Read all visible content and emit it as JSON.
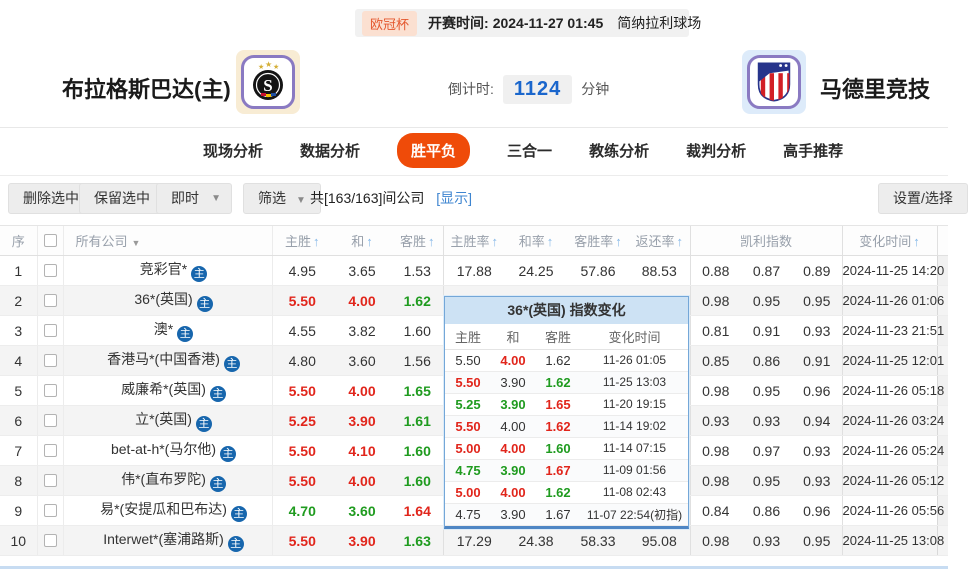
{
  "match_bar": {
    "league_badge": "欧冠杯",
    "kickoff_label": "开赛时间:",
    "kickoff_time": "2024-11-27 01:45",
    "venue": "简纳拉利球场"
  },
  "teams": {
    "home_name": "布拉格斯巴达(主)",
    "away_name": "马德里竞技",
    "home_logo": "sparta-prague-crest",
    "away_logo": "atletico-madrid-crest"
  },
  "countdown": {
    "label": "倒计时:",
    "value": "1124",
    "unit": "分钟"
  },
  "tabs": {
    "items": [
      {
        "label": "现场分析",
        "active": false
      },
      {
        "label": "数据分析",
        "active": false
      },
      {
        "label": "胜平负",
        "active": true
      },
      {
        "label": "三合一",
        "active": false
      },
      {
        "label": "教练分析",
        "active": false
      },
      {
        "label": "裁判分析",
        "active": false
      },
      {
        "label": "高手推荐",
        "active": false
      }
    ]
  },
  "toolbar": {
    "delete_selected": "删除选中",
    "keep_selected": "保留选中",
    "live_dropdown": "即时",
    "filter_dropdown": "筛选",
    "company_count": "共[163/163]间公司",
    "show_link": "[显示]",
    "settings_button": "设置/选择"
  },
  "odds_table": {
    "headers": {
      "seq": "序",
      "company": "所有公司",
      "home": "主胜",
      "draw": "和",
      "away": "客胜",
      "home_rate": "主胜率",
      "draw_rate": "和率",
      "away_rate": "客胜率",
      "return_rate": "返还率",
      "kelly": "凯利指数",
      "change_time": "变化时间"
    },
    "company_tag": "主",
    "rows": [
      {
        "no": "1",
        "company": "竞彩官*",
        "odds": [
          "4.95",
          "3.65",
          "1.53"
        ],
        "odds_colors": [
          "k",
          "k",
          "k"
        ],
        "rates": [
          "17.88",
          "24.25",
          "57.86",
          "88.53"
        ],
        "kelly": [
          "0.88",
          "0.87",
          "0.89"
        ],
        "time": "2024-11-25 14:20"
      },
      {
        "no": "2",
        "company": "36*(英国)",
        "odds": [
          "5.50",
          "4.00",
          "1.62"
        ],
        "odds_colors": [
          "r",
          "r",
          "g"
        ],
        "rates": [
          "",
          "",
          "",
          ""
        ],
        "kelly": [
          "0.98",
          "0.95",
          "0.95"
        ],
        "time": "2024-11-26 01:06"
      },
      {
        "no": "3",
        "company": "澳*",
        "odds": [
          "4.55",
          "3.82",
          "1.60"
        ],
        "odds_colors": [
          "k",
          "k",
          "k"
        ],
        "rates": [
          "",
          "",
          "",
          ""
        ],
        "kelly": [
          "0.81",
          "0.91",
          "0.93"
        ],
        "time": "2024-11-23 21:51"
      },
      {
        "no": "4",
        "company": "香港马*(中国香港)",
        "odds": [
          "4.80",
          "3.60",
          "1.56"
        ],
        "odds_colors": [
          "k",
          "k",
          "k"
        ],
        "rates": [
          "",
          "",
          "",
          ""
        ],
        "kelly": [
          "0.85",
          "0.86",
          "0.91"
        ],
        "time": "2024-11-25 12:01"
      },
      {
        "no": "5",
        "company": "威廉希*(英国)",
        "odds": [
          "5.50",
          "4.00",
          "1.65"
        ],
        "odds_colors": [
          "r",
          "r",
          "g"
        ],
        "rates": [
          "",
          "",
          "",
          ""
        ],
        "kelly": [
          "0.98",
          "0.95",
          "0.96"
        ],
        "time": "2024-11-26 05:18"
      },
      {
        "no": "6",
        "company": "立*(英国)",
        "odds": [
          "5.25",
          "3.90",
          "1.61"
        ],
        "odds_colors": [
          "r",
          "r",
          "g"
        ],
        "rates": [
          "",
          "",
          "",
          ""
        ],
        "kelly": [
          "0.93",
          "0.93",
          "0.94"
        ],
        "time": "2024-11-26 03:24"
      },
      {
        "no": "7",
        "company": "bet-at-h*(马尔他)",
        "odds": [
          "5.50",
          "4.10",
          "1.60"
        ],
        "odds_colors": [
          "r",
          "r",
          "g"
        ],
        "rates": [
          "",
          "",
          "",
          ""
        ],
        "kelly": [
          "0.98",
          "0.97",
          "0.93"
        ],
        "time": "2024-11-26 05:24"
      },
      {
        "no": "8",
        "company": "伟*(直布罗陀)",
        "odds": [
          "5.50",
          "4.00",
          "1.60"
        ],
        "odds_colors": [
          "r",
          "r",
          "g"
        ],
        "rates": [
          "",
          "",
          "",
          ""
        ],
        "kelly": [
          "0.98",
          "0.95",
          "0.93"
        ],
        "time": "2024-11-26 05:12"
      },
      {
        "no": "9",
        "company": "易*(安提瓜和巴布达)",
        "odds": [
          "4.70",
          "3.60",
          "1.64"
        ],
        "odds_colors": [
          "g",
          "g",
          "r"
        ],
        "rates": [
          "",
          "",
          "",
          ""
        ],
        "kelly": [
          "0.84",
          "0.86",
          "0.96"
        ],
        "time": "2024-11-26 05:56"
      },
      {
        "no": "10",
        "company": "Interwet*(塞浦路斯)",
        "odds": [
          "5.50",
          "3.90",
          "1.63"
        ],
        "odds_colors": [
          "r",
          "r",
          "g"
        ],
        "rates": [
          "17.29",
          "24.38",
          "58.33",
          "95.08"
        ],
        "kelly": [
          "0.98",
          "0.93",
          "0.95"
        ],
        "time": "2024-11-25 13:08"
      }
    ]
  },
  "popup": {
    "title": "36*(英国) 指数变化",
    "headers": [
      "主胜",
      "和",
      "客胜",
      "变化时间"
    ],
    "rows": [
      {
        "vals": [
          "5.50",
          "4.00",
          "1.62"
        ],
        "colors": [
          "k",
          "r",
          "k"
        ],
        "time": "11-26 01:05"
      },
      {
        "vals": [
          "5.50",
          "3.90",
          "1.62"
        ],
        "colors": [
          "r",
          "k",
          "g"
        ],
        "time": "11-25 13:03"
      },
      {
        "vals": [
          "5.25",
          "3.90",
          "1.65"
        ],
        "colors": [
          "g",
          "g",
          "r"
        ],
        "time": "11-20 19:15"
      },
      {
        "vals": [
          "5.50",
          "4.00",
          "1.62"
        ],
        "colors": [
          "r",
          "k",
          "r"
        ],
        "time": "11-14 19:02"
      },
      {
        "vals": [
          "5.00",
          "4.00",
          "1.60"
        ],
        "colors": [
          "r",
          "r",
          "g"
        ],
        "time": "11-14 07:15"
      },
      {
        "vals": [
          "4.75",
          "3.90",
          "1.67"
        ],
        "colors": [
          "g",
          "g",
          "r"
        ],
        "time": "11-09 01:56"
      },
      {
        "vals": [
          "5.00",
          "4.00",
          "1.62"
        ],
        "colors": [
          "r",
          "r",
          "g"
        ],
        "time": "11-08 02:43"
      },
      {
        "vals": [
          "4.75",
          "3.90",
          "1.67"
        ],
        "colors": [
          "k",
          "k",
          "k"
        ],
        "time": "11-07 22:54(初指)"
      }
    ]
  },
  "colors": {
    "odds_up_red": "#e1251b",
    "odds_down_green": "#1f9b1f",
    "active_tab_orange": "#ef4b09",
    "countdown_blue": "#1a66cc",
    "league_badge_orange": "#e4572e",
    "popup_header_blue": "#cde2f4",
    "tag_icon_blue": "#1766ad"
  }
}
